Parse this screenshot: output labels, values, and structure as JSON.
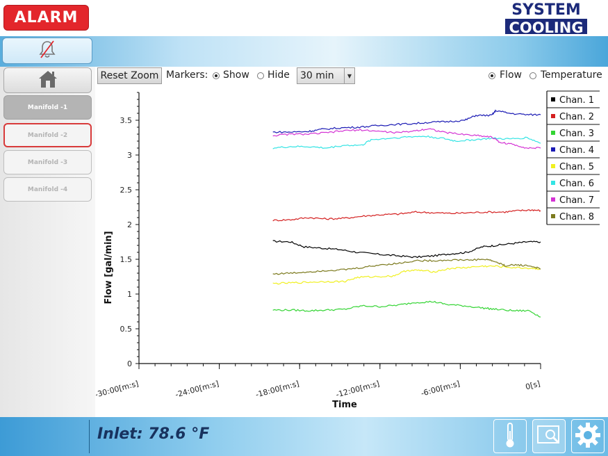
{
  "header": {
    "alarm_label": "ALARM",
    "logo_line1": "SYSTEM",
    "logo_line2": "COOLING"
  },
  "sidebar": {
    "items": [
      {
        "label": "Manifold -1",
        "state": "active"
      },
      {
        "label": "Manifold -2",
        "state": "alarm"
      },
      {
        "label": "Manifold -3",
        "state": "normal"
      },
      {
        "label": "Manifold -4",
        "state": "normal"
      }
    ]
  },
  "toolbar": {
    "reset_zoom_label": "Reset Zoom",
    "markers_label": "Markers:",
    "show_label": "Show",
    "hide_label": "Hide",
    "markers_selected": "Show",
    "time_range_value": "30 min",
    "flow_label": "Flow",
    "temperature_label": "Temperature",
    "mode_selected": "Flow"
  },
  "footer": {
    "inlet_text": "Inlet: 78.6 °F"
  },
  "icons": {
    "bell": "bell-muted-icon",
    "home": "home-icon",
    "thermometer": "thermometer-icon",
    "zoom": "zoom-image-icon",
    "settings": "gear-icon"
  },
  "colors": {
    "alarm": "#e3262b",
    "brand": "#1c2a7a",
    "active_manifold": "#b4b4b4"
  },
  "chart_data": {
    "type": "line",
    "title": "",
    "xlabel": "Time",
    "ylabel": "Flow [gal/min]",
    "ylim": [
      0,
      3.9
    ],
    "xlim": [
      -1800,
      0
    ],
    "x_unit": "s",
    "y_ticks": [
      0,
      0.5,
      1,
      1.5,
      2,
      2.5,
      3,
      3.5
    ],
    "x_tick_values": [
      -1800,
      -1440,
      -1080,
      -720,
      -360,
      0
    ],
    "x_tick_labels": [
      "-30:00[m:s]",
      "-24:00[m:s]",
      "-18:00[m:s]",
      "-12:00[m:s]",
      "-6:00[m:s]",
      "0[s]"
    ],
    "legend_position": "right",
    "series": [
      {
        "name": "Chan. 1",
        "color": "#000000",
        "points": [
          [
            -1200,
            1.76
          ],
          [
            -1120,
            1.75
          ],
          [
            -1060,
            1.68
          ],
          [
            -980,
            1.66
          ],
          [
            -900,
            1.64
          ],
          [
            -820,
            1.6
          ],
          [
            -720,
            1.57
          ],
          [
            -640,
            1.55
          ],
          [
            -560,
            1.53
          ],
          [
            -480,
            1.55
          ],
          [
            -400,
            1.58
          ],
          [
            -330,
            1.6
          ],
          [
            -260,
            1.68
          ],
          [
            -200,
            1.7
          ],
          [
            -120,
            1.73
          ],
          [
            -60,
            1.75
          ],
          [
            0,
            1.75
          ]
        ]
      },
      {
        "name": "Chan. 2",
        "color": "#d42020",
        "points": [
          [
            -1200,
            2.06
          ],
          [
            -1120,
            2.07
          ],
          [
            -1040,
            2.1
          ],
          [
            -960,
            2.08
          ],
          [
            -880,
            2.09
          ],
          [
            -800,
            2.12
          ],
          [
            -720,
            2.14
          ],
          [
            -640,
            2.15
          ],
          [
            -560,
            2.18
          ],
          [
            -480,
            2.17
          ],
          [
            -400,
            2.16
          ],
          [
            -320,
            2.17
          ],
          [
            -240,
            2.18
          ],
          [
            -160,
            2.18
          ],
          [
            -100,
            2.2
          ],
          [
            -40,
            2.21
          ],
          [
            0,
            2.2
          ]
        ]
      },
      {
        "name": "Chan. 3",
        "color": "#33d433",
        "points": [
          [
            -1200,
            0.77
          ],
          [
            -1120,
            0.77
          ],
          [
            -1040,
            0.76
          ],
          [
            -960,
            0.77
          ],
          [
            -880,
            0.78
          ],
          [
            -800,
            0.83
          ],
          [
            -720,
            0.82
          ],
          [
            -640,
            0.84
          ],
          [
            -560,
            0.88
          ],
          [
            -480,
            0.89
          ],
          [
            -420,
            0.85
          ],
          [
            -340,
            0.83
          ],
          [
            -260,
            0.8
          ],
          [
            -200,
            0.78
          ],
          [
            -120,
            0.76
          ],
          [
            -50,
            0.76
          ],
          [
            0,
            0.67
          ]
        ]
      },
      {
        "name": "Chan. 4",
        "color": "#1a1ab4",
        "points": [
          [
            -1200,
            3.33
          ],
          [
            -1120,
            3.33
          ],
          [
            -1040,
            3.34
          ],
          [
            -980,
            3.37
          ],
          [
            -900,
            3.39
          ],
          [
            -820,
            3.4
          ],
          [
            -740,
            3.42
          ],
          [
            -660,
            3.44
          ],
          [
            -580,
            3.45
          ],
          [
            -500,
            3.47
          ],
          [
            -420,
            3.48
          ],
          [
            -340,
            3.5
          ],
          [
            -290,
            3.57
          ],
          [
            -220,
            3.57
          ],
          [
            -200,
            3.64
          ],
          [
            -140,
            3.6
          ],
          [
            -60,
            3.58
          ],
          [
            0,
            3.58
          ]
        ]
      },
      {
        "name": "Chan. 5",
        "color": "#f0f020",
        "points": [
          [
            -1200,
            1.15
          ],
          [
            -1120,
            1.16
          ],
          [
            -1040,
            1.17
          ],
          [
            -960,
            1.18
          ],
          [
            -880,
            1.18
          ],
          [
            -820,
            1.24
          ],
          [
            -740,
            1.25
          ],
          [
            -660,
            1.26
          ],
          [
            -600,
            1.34
          ],
          [
            -540,
            1.34
          ],
          [
            -480,
            1.32
          ],
          [
            -400,
            1.37
          ],
          [
            -340,
            1.38
          ],
          [
            -260,
            1.4
          ],
          [
            -200,
            1.4
          ],
          [
            -120,
            1.38
          ],
          [
            -40,
            1.37
          ],
          [
            0,
            1.36
          ]
        ]
      },
      {
        "name": "Chan. 6",
        "color": "#33e4e4",
        "points": [
          [
            -1200,
            3.1
          ],
          [
            -1120,
            3.12
          ],
          [
            -1040,
            3.12
          ],
          [
            -960,
            3.1
          ],
          [
            -880,
            3.14
          ],
          [
            -800,
            3.14
          ],
          [
            -760,
            3.22
          ],
          [
            -680,
            3.24
          ],
          [
            -600,
            3.26
          ],
          [
            -520,
            3.27
          ],
          [
            -440,
            3.24
          ],
          [
            -380,
            3.2
          ],
          [
            -300,
            3.22
          ],
          [
            -220,
            3.24
          ],
          [
            -140,
            3.23
          ],
          [
            -60,
            3.25
          ],
          [
            0,
            3.17
          ]
        ]
      },
      {
        "name": "Chan. 7",
        "color": "#d433d4",
        "points": [
          [
            -1200,
            3.28
          ],
          [
            -1120,
            3.3
          ],
          [
            -1040,
            3.3
          ],
          [
            -960,
            3.32
          ],
          [
            -880,
            3.35
          ],
          [
            -800,
            3.36
          ],
          [
            -720,
            3.34
          ],
          [
            -640,
            3.32
          ],
          [
            -560,
            3.35
          ],
          [
            -500,
            3.38
          ],
          [
            -440,
            3.33
          ],
          [
            -360,
            3.3
          ],
          [
            -280,
            3.28
          ],
          [
            -220,
            3.26
          ],
          [
            -180,
            3.18
          ],
          [
            -120,
            3.15
          ],
          [
            -60,
            3.1
          ],
          [
            0,
            3.1
          ]
        ]
      },
      {
        "name": "Chan. 8",
        "color": "#7c7a1e",
        "points": [
          [
            -1200,
            1.29
          ],
          [
            -1120,
            1.3
          ],
          [
            -1040,
            1.32
          ],
          [
            -960,
            1.34
          ],
          [
            -880,
            1.35
          ],
          [
            -800,
            1.38
          ],
          [
            -720,
            1.42
          ],
          [
            -640,
            1.44
          ],
          [
            -560,
            1.48
          ],
          [
            -480,
            1.48
          ],
          [
            -400,
            1.49
          ],
          [
            -320,
            1.49
          ],
          [
            -240,
            1.5
          ],
          [
            -200,
            1.46
          ],
          [
            -160,
            1.41
          ],
          [
            -100,
            1.42
          ],
          [
            -40,
            1.4
          ],
          [
            0,
            1.36
          ]
        ]
      }
    ]
  }
}
